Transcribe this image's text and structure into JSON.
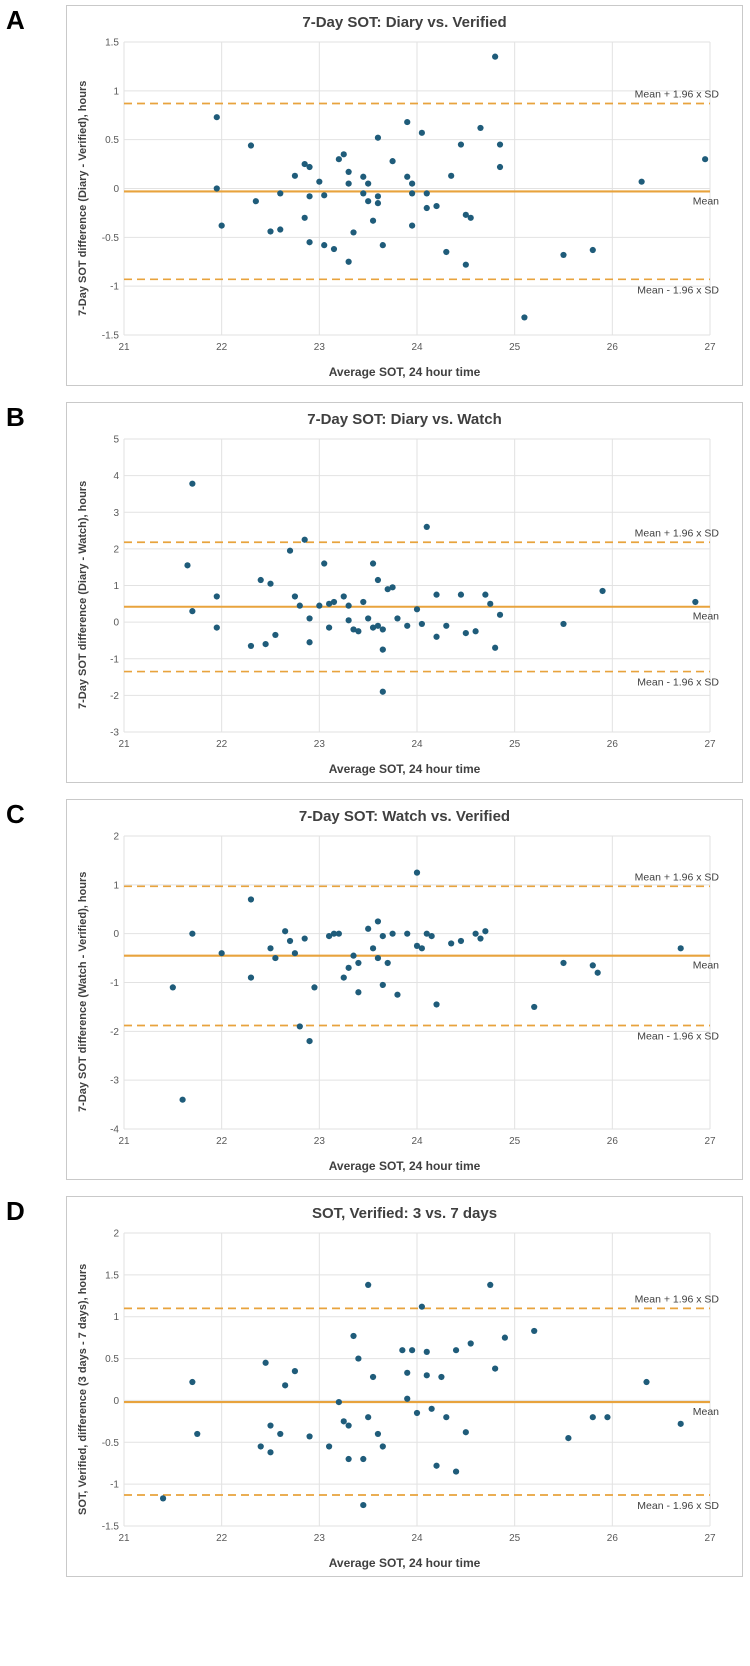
{
  "panel_letters": [
    "A",
    "B",
    "C",
    "D"
  ],
  "colors": {
    "point": "#1f5c7a",
    "accent": "#E8A33D",
    "grid": "#e2e2e2",
    "tick_text": "#595959",
    "title_text": "#404040"
  },
  "chart_data": [
    {
      "type": "scatter",
      "title": "7-Day SOT: Diary vs. Verified",
      "xlabel": "Average SOT, 24 hour time",
      "ylabel": "7-Day SOT difference (Diary - Verified), hours",
      "xlim": [
        21,
        27
      ],
      "ylim": [
        -1.5,
        1.5
      ],
      "xtick_step": 1,
      "ytick_step": 0.5,
      "mean": -0.03,
      "upper_loa": 0.87,
      "lower_loa": -0.93,
      "mean_label": "Mean",
      "upper_label": "Mean + 1.96 x SD",
      "lower_label": "Mean - 1.96 x SD",
      "grid": true,
      "legend": "none",
      "points": [
        [
          21.95,
          0.73
        ],
        [
          21.95,
          0.0
        ],
        [
          22.0,
          -0.38
        ],
        [
          22.3,
          0.44
        ],
        [
          22.35,
          -0.13
        ],
        [
          22.5,
          -0.44
        ],
        [
          22.6,
          -0.05
        ],
        [
          22.6,
          -0.42
        ],
        [
          22.75,
          0.13
        ],
        [
          22.85,
          0.25
        ],
        [
          22.9,
          0.22
        ],
        [
          22.9,
          -0.08
        ],
        [
          22.85,
          -0.3
        ],
        [
          22.9,
          -0.55
        ],
        [
          23.0,
          0.07
        ],
        [
          23.05,
          -0.07
        ],
        [
          23.05,
          -0.58
        ],
        [
          23.15,
          -0.62
        ],
        [
          23.2,
          0.3
        ],
        [
          23.25,
          0.35
        ],
        [
          23.3,
          0.17
        ],
        [
          23.3,
          0.05
        ],
        [
          23.35,
          -0.45
        ],
        [
          23.3,
          -0.75
        ],
        [
          23.45,
          0.12
        ],
        [
          23.5,
          0.05
        ],
        [
          23.45,
          -0.05
        ],
        [
          23.5,
          -0.13
        ],
        [
          23.55,
          -0.33
        ],
        [
          23.6,
          0.52
        ],
        [
          23.6,
          -0.08
        ],
        [
          23.6,
          -0.15
        ],
        [
          23.65,
          -0.58
        ],
        [
          23.75,
          0.28
        ],
        [
          23.9,
          0.68
        ],
        [
          23.9,
          0.12
        ],
        [
          23.95,
          0.05
        ],
        [
          23.95,
          -0.05
        ],
        [
          23.95,
          -0.38
        ],
        [
          24.05,
          0.57
        ],
        [
          24.1,
          -0.05
        ],
        [
          24.1,
          -0.2
        ],
        [
          24.2,
          -0.18
        ],
        [
          24.3,
          -0.65
        ],
        [
          24.35,
          0.13
        ],
        [
          24.45,
          0.45
        ],
        [
          24.5,
          -0.27
        ],
        [
          24.55,
          -0.3
        ],
        [
          24.5,
          -0.78
        ],
        [
          24.65,
          0.62
        ],
        [
          24.8,
          1.35
        ],
        [
          24.85,
          0.45
        ],
        [
          24.85,
          0.22
        ],
        [
          25.1,
          -1.32
        ],
        [
          25.5,
          -0.68
        ],
        [
          25.8,
          -0.63
        ],
        [
          26.3,
          0.07
        ],
        [
          26.95,
          0.3
        ]
      ]
    },
    {
      "type": "scatter",
      "title": "7-Day SOT: Diary vs. Watch",
      "xlabel": "Average SOT, 24 hour time",
      "ylabel": "7-Day SOT difference (Diary - Watch), hours",
      "xlim": [
        21,
        27
      ],
      "ylim": [
        -3,
        5
      ],
      "xtick_step": 1,
      "ytick_step": 1,
      "mean": 0.42,
      "upper_loa": 2.18,
      "lower_loa": -1.35,
      "mean_label": "Mean",
      "upper_label": "Mean + 1.96 x SD",
      "lower_label": "Mean - 1.96 x SD",
      "grid": true,
      "legend": "none",
      "points": [
        [
          21.7,
          3.78
        ],
        [
          21.65,
          1.55
        ],
        [
          21.7,
          0.3
        ],
        [
          21.95,
          0.7
        ],
        [
          21.95,
          -0.15
        ],
        [
          22.3,
          -0.65
        ],
        [
          22.4,
          1.15
        ],
        [
          22.45,
          -0.6
        ],
        [
          22.5,
          1.05
        ],
        [
          22.55,
          -0.35
        ],
        [
          22.7,
          1.95
        ],
        [
          22.75,
          0.7
        ],
        [
          22.8,
          0.45
        ],
        [
          22.85,
          2.25
        ],
        [
          22.9,
          0.1
        ],
        [
          22.9,
          -0.55
        ],
        [
          23.0,
          0.45
        ],
        [
          23.05,
          1.6
        ],
        [
          23.1,
          0.5
        ],
        [
          23.1,
          -0.15
        ],
        [
          23.15,
          0.55
        ],
        [
          23.25,
          0.7
        ],
        [
          23.3,
          0.45
        ],
        [
          23.3,
          0.05
        ],
        [
          23.35,
          -0.2
        ],
        [
          23.4,
          -0.25
        ],
        [
          23.45,
          0.55
        ],
        [
          23.5,
          0.1
        ],
        [
          23.55,
          -0.15
        ],
        [
          23.55,
          1.6
        ],
        [
          23.6,
          1.15
        ],
        [
          23.6,
          -0.1
        ],
        [
          23.65,
          -0.2
        ],
        [
          23.65,
          -0.75
        ],
        [
          23.65,
          -1.9
        ],
        [
          23.7,
          0.9
        ],
        [
          23.75,
          0.95
        ],
        [
          23.8,
          0.1
        ],
        [
          23.9,
          -0.1
        ],
        [
          24.0,
          0.35
        ],
        [
          24.05,
          -0.05
        ],
        [
          24.1,
          2.6
        ],
        [
          24.2,
          0.75
        ],
        [
          24.2,
          -0.4
        ],
        [
          24.3,
          -0.1
        ],
        [
          24.45,
          0.75
        ],
        [
          24.5,
          -0.3
        ],
        [
          24.6,
          -0.25
        ],
        [
          24.7,
          0.75
        ],
        [
          24.75,
          0.5
        ],
        [
          24.8,
          -0.7
        ],
        [
          24.85,
          0.2
        ],
        [
          25.5,
          -0.05
        ],
        [
          25.9,
          0.85
        ],
        [
          26.85,
          0.55
        ]
      ]
    },
    {
      "type": "scatter",
      "title": "7-Day SOT: Watch vs. Verified",
      "xlabel": "Average SOT, 24 hour time",
      "ylabel": "7-Day SOT difference (Watch - Verified), hours",
      "xlim": [
        21,
        27
      ],
      "ylim": [
        -4,
        2
      ],
      "xtick_step": 1,
      "ytick_step": 1,
      "mean": -0.45,
      "upper_loa": 0.97,
      "lower_loa": -1.88,
      "mean_label": "Mean",
      "upper_label": "Mean + 1.96 x SD",
      "lower_label": "Mean - 1.96 x SD",
      "grid": true,
      "legend": "none",
      "points": [
        [
          21.5,
          -1.1
        ],
        [
          21.6,
          -3.4
        ],
        [
          21.7,
          0.0
        ],
        [
          22.0,
          -0.4
        ],
        [
          22.3,
          0.7
        ],
        [
          22.3,
          -0.9
        ],
        [
          22.5,
          -0.3
        ],
        [
          22.55,
          -0.5
        ],
        [
          22.65,
          0.05
        ],
        [
          22.7,
          -0.15
        ],
        [
          22.75,
          -0.4
        ],
        [
          22.8,
          -1.9
        ],
        [
          22.85,
          -0.1
        ],
        [
          22.9,
          -2.2
        ],
        [
          22.95,
          -1.1
        ],
        [
          23.1,
          -0.05
        ],
        [
          23.15,
          0.0
        ],
        [
          23.2,
          0.0
        ],
        [
          23.25,
          -0.9
        ],
        [
          23.3,
          -0.7
        ],
        [
          23.35,
          -0.45
        ],
        [
          23.4,
          -0.6
        ],
        [
          23.4,
          -1.2
        ],
        [
          23.5,
          0.1
        ],
        [
          23.55,
          -0.3
        ],
        [
          23.6,
          0.25
        ],
        [
          23.6,
          -0.5
        ],
        [
          23.65,
          -0.05
        ],
        [
          23.65,
          -1.05
        ],
        [
          23.7,
          -0.6
        ],
        [
          23.75,
          0.0
        ],
        [
          23.8,
          -1.25
        ],
        [
          23.9,
          0.0
        ],
        [
          24.0,
          1.25
        ],
        [
          24.0,
          -0.25
        ],
        [
          24.05,
          -0.3
        ],
        [
          24.1,
          0.0
        ],
        [
          24.15,
          -0.05
        ],
        [
          24.2,
          -1.45
        ],
        [
          24.35,
          -0.2
        ],
        [
          24.45,
          -0.15
        ],
        [
          24.6,
          0.0
        ],
        [
          24.65,
          -0.1
        ],
        [
          24.7,
          0.05
        ],
        [
          25.2,
          -1.5
        ],
        [
          25.5,
          -0.6
        ],
        [
          25.8,
          -0.65
        ],
        [
          25.85,
          -0.8
        ],
        [
          26.7,
          -0.3
        ]
      ]
    },
    {
      "type": "scatter",
      "title": "SOT, Verified: 3 vs. 7 days",
      "xlabel": "Average SOT, 24 hour time",
      "ylabel": "SOT, Verified, difference (3 days - 7 days), hours",
      "xlim": [
        21,
        27
      ],
      "ylim": [
        -1.5,
        2
      ],
      "xtick_step": 1,
      "ytick_step": 0.5,
      "mean": -0.02,
      "upper_loa": 1.1,
      "lower_loa": -1.13,
      "mean_label": "Mean",
      "upper_label": "Mean + 1.96 x SD",
      "lower_label": "Mean - 1.96 x SD",
      "grid": true,
      "legend": "none",
      "points": [
        [
          21.4,
          -1.17
        ],
        [
          21.7,
          0.22
        ],
        [
          21.75,
          -0.4
        ],
        [
          22.4,
          -0.55
        ],
        [
          22.45,
          0.45
        ],
        [
          22.5,
          -0.3
        ],
        [
          22.5,
          -0.62
        ],
        [
          22.6,
          -0.4
        ],
        [
          22.65,
          0.18
        ],
        [
          22.75,
          0.35
        ],
        [
          22.9,
          -0.43
        ],
        [
          23.1,
          -0.55
        ],
        [
          23.2,
          -0.02
        ],
        [
          23.25,
          -0.25
        ],
        [
          23.3,
          -0.3
        ],
        [
          23.3,
          -0.7
        ],
        [
          23.35,
          0.77
        ],
        [
          23.4,
          0.5
        ],
        [
          23.45,
          -0.7
        ],
        [
          23.45,
          -1.25
        ],
        [
          23.5,
          1.38
        ],
        [
          23.5,
          -0.2
        ],
        [
          23.55,
          0.28
        ],
        [
          23.6,
          -0.4
        ],
        [
          23.65,
          -0.55
        ],
        [
          23.85,
          0.6
        ],
        [
          23.9,
          0.33
        ],
        [
          23.9,
          0.02
        ],
        [
          23.95,
          0.6
        ],
        [
          24.0,
          -0.15
        ],
        [
          24.05,
          1.12
        ],
        [
          24.1,
          0.58
        ],
        [
          24.1,
          0.3
        ],
        [
          24.15,
          -0.1
        ],
        [
          24.2,
          -0.78
        ],
        [
          24.25,
          0.28
        ],
        [
          24.3,
          -0.2
        ],
        [
          24.4,
          0.6
        ],
        [
          24.4,
          -0.85
        ],
        [
          24.5,
          -0.38
        ],
        [
          24.55,
          0.68
        ],
        [
          24.75,
          1.38
        ],
        [
          24.8,
          0.38
        ],
        [
          24.9,
          0.75
        ],
        [
          25.2,
          0.83
        ],
        [
          25.55,
          -0.45
        ],
        [
          25.8,
          -0.2
        ],
        [
          25.95,
          -0.2
        ],
        [
          26.35,
          0.22
        ],
        [
          26.7,
          -0.28
        ]
      ]
    }
  ]
}
